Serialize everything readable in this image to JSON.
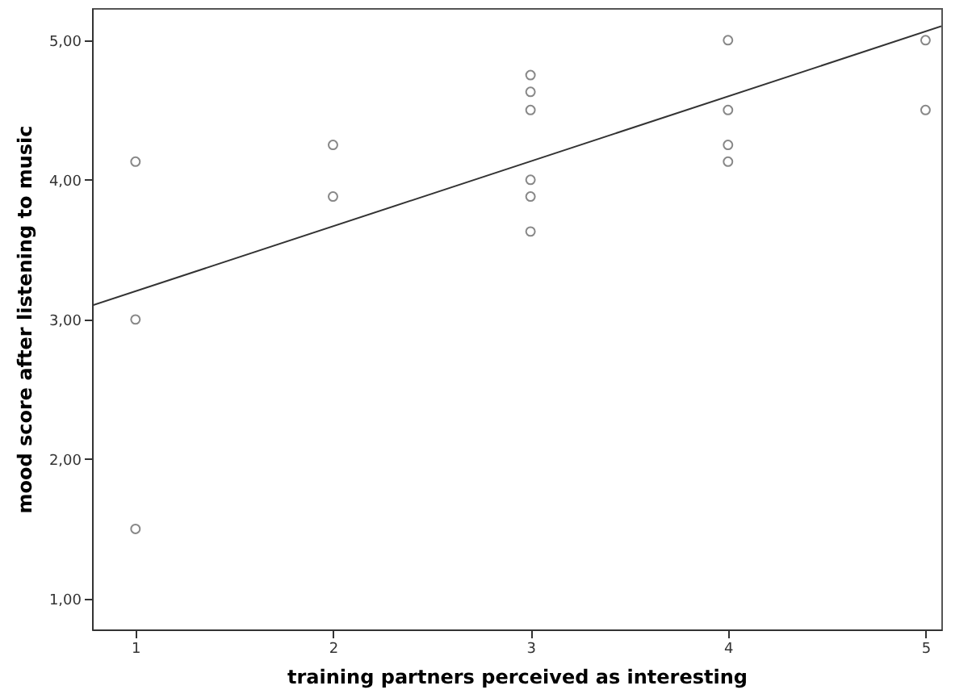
{
  "chart_data": {
    "type": "scatter",
    "xlabel": "training partners perceived as interesting",
    "ylabel": "mood score after listening to music",
    "xlim": [
      0.78,
      5.08
    ],
    "ylim": [
      0.78,
      5.23
    ],
    "xticks": [
      1,
      2,
      3,
      4,
      5
    ],
    "yticks": [
      {
        "value": 1,
        "label": "1,00"
      },
      {
        "value": 2,
        "label": "2,00"
      },
      {
        "value": 3,
        "label": "3,00"
      },
      {
        "value": 4,
        "label": "4,00"
      },
      {
        "value": 5,
        "label": "5,00"
      }
    ],
    "grid": false,
    "series": [
      {
        "color": "#555555",
        "marker": "circle",
        "x": [
          1,
          1,
          1,
          2,
          2,
          3,
          3,
          3,
          3,
          3,
          3,
          4,
          4,
          4,
          4,
          5,
          5
        ],
        "values": [
          4.13,
          3.0,
          1.5,
          4.25,
          3.88,
          4.75,
          4.63,
          4.5,
          4.0,
          3.88,
          3.63,
          5.0,
          4.5,
          4.25,
          4.13,
          5.0,
          4.5
        ]
      },
      {
        "type": "line",
        "color": "#333333",
        "line_style": "solid",
        "x": [
          0.78,
          5.08
        ],
        "values": [
          3.1,
          5.1
        ]
      }
    ]
  }
}
